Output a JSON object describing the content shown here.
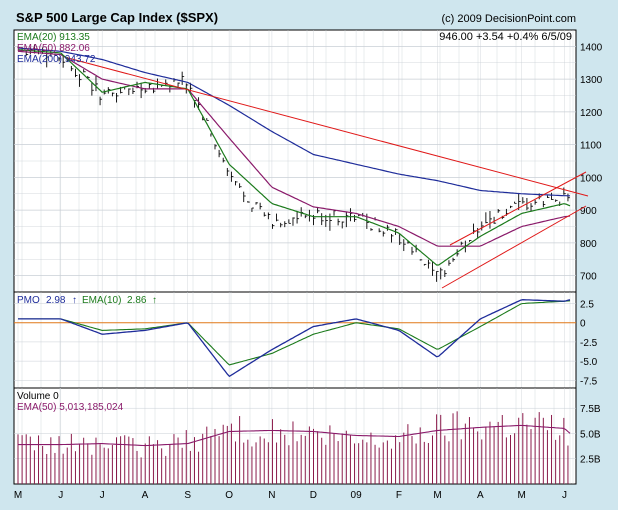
{
  "header": {
    "title": "S&P 500 Large Cap Index ($SPX)",
    "copyright": "(c) 2009 DecisionPoint.com",
    "last_quote": "946.00  +3.54  +0.4%  6/5/09"
  },
  "price_panel": {
    "legend": [
      {
        "text": "EMA(20) 913.35",
        "color": "#1b7a1b"
      },
      {
        "text": "EMA(50) 882.06",
        "color": "#8a1a6a"
      },
      {
        "text": "EMA(200) 943.72",
        "color": "#1e2c9a"
      }
    ],
    "y_ticks": [
      "1400",
      "1300",
      "1200",
      "1100",
      "1000",
      "900",
      "800",
      "700"
    ]
  },
  "pmo_panel": {
    "pmo_label": "PMO",
    "pmo_value": "2.98",
    "pmo_arrow": "↑",
    "ema_label": "EMA(10)",
    "ema_value": "2.86",
    "ema_arrow": "↑",
    "y_ticks": [
      "2.5",
      "0",
      "-2.5",
      "-5.0",
      "-7.5"
    ]
  },
  "volume_panel": {
    "volume_label": "Volume 0",
    "ema_label": "EMA(50) 5,013,185,024",
    "y_ticks": [
      "7.5B",
      "5.0B",
      "2.5B"
    ]
  },
  "x_ticks": [
    "M",
    "J",
    "J",
    "A",
    "S",
    "O",
    "N",
    "D",
    "09",
    "F",
    "M",
    "A",
    "M",
    "J"
  ],
  "colors": {
    "frame_bg": "#cfe6ee",
    "panel_bg": "#ffffff",
    "grid": "#c9cfd6",
    "price_bar": "#000000",
    "ema20": "#1b7a1b",
    "ema50": "#8a1a6a",
    "ema200": "#1e2c9a",
    "trendline": "#e01818",
    "pmo": "#1e2c9a",
    "pmo_ema": "#1b7a1b",
    "zero_line": "#e07818",
    "volume_bar": "#8a1a4a",
    "volume_ema": "#8a1a6a"
  },
  "chart_data": [
    {
      "type": "line",
      "panel": "price",
      "title": "S&P 500 Large Cap Index ($SPX)",
      "x": [
        "2008-05-01",
        "2008-06-01",
        "2008-07-01",
        "2008-08-01",
        "2008-09-01",
        "2008-10-01",
        "2008-11-01",
        "2008-12-01",
        "2009-01-01",
        "2009-02-01",
        "2009-03-01",
        "2009-04-01",
        "2009-05-01",
        "2009-06-01",
        "2009-06-05"
      ],
      "series": [
        {
          "name": "Close",
          "values": [
            1400,
            1370,
            1250,
            1280,
            1290,
            1000,
            860,
            880,
            880,
            820,
            690,
            860,
            910,
            940,
            946
          ]
        },
        {
          "name": "EMA(20)",
          "values": [
            1390,
            1380,
            1260,
            1290,
            1270,
            1040,
            920,
            880,
            880,
            830,
            730,
            820,
            890,
            920,
            913.35
          ]
        },
        {
          "name": "EMA(50)",
          "values": [
            1385,
            1375,
            1300,
            1270,
            1270,
            1120,
            970,
            910,
            890,
            850,
            790,
            790,
            850,
            880,
            882.06
          ]
        },
        {
          "name": "EMA(200)",
          "values": [
            1395,
            1385,
            1360,
            1320,
            1290,
            1220,
            1140,
            1070,
            1040,
            1010,
            990,
            960,
            950,
            944,
            943.72
          ]
        }
      ],
      "ylim": [
        650,
        1450
      ],
      "grid": true
    },
    {
      "type": "line",
      "panel": "pmo",
      "x": [
        "2008-05-01",
        "2008-06-01",
        "2008-07-01",
        "2008-08-01",
        "2008-09-01",
        "2008-10-01",
        "2008-11-01",
        "2008-12-01",
        "2009-01-01",
        "2009-02-01",
        "2009-03-01",
        "2009-04-01",
        "2009-05-01",
        "2009-06-01",
        "2009-06-05"
      ],
      "series": [
        {
          "name": "PMO",
          "values": [
            0.5,
            0.5,
            -1.5,
            -1.0,
            0,
            -7.0,
            -3.5,
            -0.5,
            0.5,
            -1.0,
            -4.5,
            0.5,
            3.0,
            2.8,
            2.98
          ]
        },
        {
          "name": "EMA(10)",
          "values": [
            0.5,
            0.5,
            -1.0,
            -0.8,
            0,
            -5.5,
            -4.0,
            -1.5,
            0.0,
            -0.8,
            -3.5,
            -0.5,
            2.5,
            2.8,
            2.86
          ]
        }
      ],
      "ylim": [
        -8.5,
        4
      ],
      "grid": true
    },
    {
      "type": "bar",
      "panel": "volume",
      "x": [
        "2008-05-01",
        "2008-06-01",
        "2008-07-01",
        "2008-08-01",
        "2008-09-01",
        "2008-10-01",
        "2008-11-01",
        "2008-12-01",
        "2009-01-01",
        "2009-02-01",
        "2009-03-01",
        "2009-04-01",
        "2009-05-01",
        "2009-06-01",
        "2009-06-05"
      ],
      "series": [
        {
          "name": "Volume",
          "values": [
            3.8,
            3.9,
            4.0,
            3.6,
            4.2,
            5.5,
            5.0,
            4.8,
            4.2,
            4.5,
            5.6,
            6.0,
            6.2,
            5.5,
            5.3
          ]
        },
        {
          "name": "EMA(50)",
          "values": [
            3.9,
            3.9,
            4.0,
            3.8,
            4.0,
            5.2,
            5.3,
            5.2,
            4.8,
            4.7,
            5.3,
            5.6,
            5.8,
            5.5,
            5.013185024
          ]
        }
      ],
      "ylim": [
        0,
        9.5
      ],
      "grid": true
    }
  ]
}
